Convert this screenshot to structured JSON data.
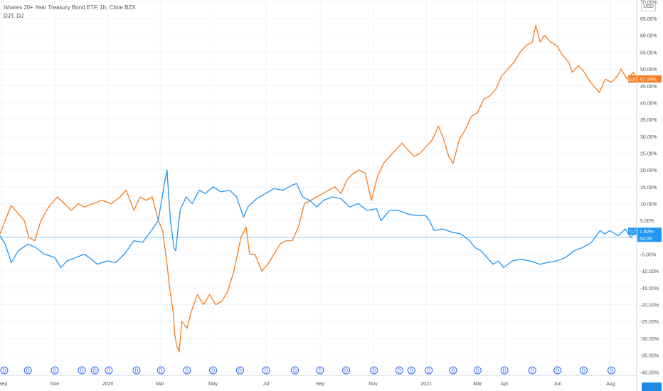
{
  "header": {
    "title": "Ishares 20+ Year Treasury Bond ETF, 1h, Cboe BZX",
    "compare": "DJT, DJ"
  },
  "currency": "USD",
  "colors": {
    "tlt": "#2196f3",
    "djt": "#f57c20",
    "grid": "#f0f3fa",
    "axis_text": "#50535e",
    "baseline": "#90caf9"
  },
  "event_marker_label": "D",
  "chart_data": {
    "type": "line",
    "ylabel": "",
    "xlabel": "",
    "ylim": [
      -41,
      70.5
    ],
    "y_ticks": [
      "70.00%",
      "65.00%",
      "60.00%",
      "55.00%",
      "50.00%",
      "45.00%",
      "40.00%",
      "35.00%",
      "30.00%",
      "25.00%",
      "20.00%",
      "15.00%",
      "10.00%",
      "5.00%",
      "-5.00%",
      "-10.00%",
      "-15.00%",
      "-20.00%",
      "-25.00%",
      "-30.00%",
      "-35.00%",
      "-40.00%"
    ],
    "y_tick_values": [
      70,
      65,
      60,
      55,
      50,
      45,
      40,
      35,
      30,
      25,
      20,
      15,
      10,
      5,
      -5,
      -10,
      -15,
      -20,
      -25,
      -30,
      -35,
      -40
    ],
    "x_ticks": [
      "Sep",
      "Nov",
      "2020",
      "Mar",
      "May",
      "Jul",
      "Sep",
      "Nov",
      "2021",
      "Mar",
      "Apr",
      "Jun",
      "Aug"
    ],
    "x_tick_dates": [
      "2019-09-01",
      "2019-11-01",
      "2020-01-01",
      "2020-03-01",
      "2020-05-01",
      "2020-07-01",
      "2020-09-01",
      "2020-11-01",
      "2021-01-01",
      "2021-03-01",
      "2021-04-01",
      "2021-06-01",
      "2021-08-01"
    ],
    "x_range": [
      "2019-08-30",
      "2021-08-31"
    ],
    "dividend_dates": [
      "2019-09-02",
      "2019-10-01",
      "2019-11-01",
      "2019-12-02",
      "2019-12-17",
      "2020-01-02",
      "2020-02-03",
      "2020-03-02",
      "2020-04-01",
      "2020-05-01",
      "2020-06-01",
      "2020-07-01",
      "2020-08-03",
      "2020-09-01",
      "2020-10-01",
      "2020-11-02",
      "2020-12-01",
      "2020-12-15",
      "2021-01-04",
      "2021-02-01",
      "2021-03-01",
      "2021-04-01",
      "2021-05-03",
      "2021-06-01",
      "2021-07-01",
      "2021-08-02"
    ],
    "grid": true,
    "series": [
      {
        "name": "TLT",
        "color": "#2196f3",
        "last_label": "1.82%",
        "countdown": "54:05",
        "points": [
          [
            "2019-08-30",
            0.5
          ],
          [
            "2019-09-05",
            -2
          ],
          [
            "2019-09-12",
            -7.5
          ],
          [
            "2019-09-20",
            -4
          ],
          [
            "2019-10-01",
            -2
          ],
          [
            "2019-10-10",
            -3
          ],
          [
            "2019-10-20",
            -5
          ],
          [
            "2019-11-01",
            -6
          ],
          [
            "2019-11-08",
            -9
          ],
          [
            "2019-11-15",
            -7
          ],
          [
            "2019-11-25",
            -6
          ],
          [
            "2019-12-05",
            -5
          ],
          [
            "2019-12-13",
            -6.5
          ],
          [
            "2019-12-20",
            -8
          ],
          [
            "2019-12-31",
            -7
          ],
          [
            "2020-01-10",
            -7.5
          ],
          [
            "2020-01-20",
            -5
          ],
          [
            "2020-01-31",
            -1
          ],
          [
            "2020-02-10",
            -1.5
          ],
          [
            "2020-02-20",
            2
          ],
          [
            "2020-02-28",
            5
          ],
          [
            "2020-03-06",
            16
          ],
          [
            "2020-03-09",
            20
          ],
          [
            "2020-03-11",
            12
          ],
          [
            "2020-03-13",
            5
          ],
          [
            "2020-03-17",
            -3
          ],
          [
            "2020-03-19",
            -4
          ],
          [
            "2020-03-24",
            8
          ],
          [
            "2020-03-31",
            12
          ],
          [
            "2020-04-07",
            10
          ],
          [
            "2020-04-15",
            14
          ],
          [
            "2020-04-22",
            13
          ],
          [
            "2020-05-01",
            15
          ],
          [
            "2020-05-10",
            13.5
          ],
          [
            "2020-05-20",
            14
          ],
          [
            "2020-05-28",
            12
          ],
          [
            "2020-06-05",
            6
          ],
          [
            "2020-06-10",
            9
          ],
          [
            "2020-06-20",
            11.5
          ],
          [
            "2020-06-30",
            13
          ],
          [
            "2020-07-10",
            14.5
          ],
          [
            "2020-07-20",
            14
          ],
          [
            "2020-07-31",
            15.5
          ],
          [
            "2020-08-05",
            16
          ],
          [
            "2020-08-12",
            12
          ],
          [
            "2020-08-20",
            11
          ],
          [
            "2020-08-28",
            9
          ],
          [
            "2020-09-05",
            11
          ],
          [
            "2020-09-15",
            12
          ],
          [
            "2020-09-25",
            11.5
          ],
          [
            "2020-10-05",
            9
          ],
          [
            "2020-10-15",
            10
          ],
          [
            "2020-10-25",
            8
          ],
          [
            "2020-11-05",
            8.5
          ],
          [
            "2020-11-10",
            5
          ],
          [
            "2020-11-20",
            8
          ],
          [
            "2020-11-30",
            8
          ],
          [
            "2020-12-10",
            7
          ],
          [
            "2020-12-20",
            6.5
          ],
          [
            "2020-12-31",
            6.5
          ],
          [
            "2021-01-05",
            5
          ],
          [
            "2021-01-10",
            2
          ],
          [
            "2021-01-20",
            2.5
          ],
          [
            "2021-01-31",
            1.5
          ],
          [
            "2021-02-10",
            1
          ],
          [
            "2021-02-20",
            -1
          ],
          [
            "2021-02-26",
            -3
          ],
          [
            "2021-03-05",
            -4
          ],
          [
            "2021-03-12",
            -6
          ],
          [
            "2021-03-19",
            -8
          ],
          [
            "2021-03-25",
            -7
          ],
          [
            "2021-03-31",
            -9
          ],
          [
            "2021-04-10",
            -7
          ],
          [
            "2021-04-20",
            -6.5
          ],
          [
            "2021-04-30",
            -7
          ],
          [
            "2021-05-12",
            -8
          ],
          [
            "2021-05-20",
            -7.5
          ],
          [
            "2021-05-31",
            -7
          ],
          [
            "2021-06-10",
            -6
          ],
          [
            "2021-06-20",
            -4
          ],
          [
            "2021-06-30",
            -3
          ],
          [
            "2021-07-10",
            -1.5
          ],
          [
            "2021-07-20",
            2
          ],
          [
            "2021-07-25",
            1
          ],
          [
            "2021-07-31",
            2
          ],
          [
            "2021-08-10",
            0.5
          ],
          [
            "2021-08-18",
            2.5
          ],
          [
            "2021-08-24",
            0
          ],
          [
            "2021-08-31",
            1.82
          ]
        ]
      },
      {
        "name": "DJT",
        "color": "#f57c20",
        "last_label": "47.04%",
        "points": [
          [
            "2019-08-30",
            1
          ],
          [
            "2019-09-05",
            5
          ],
          [
            "2019-09-12",
            9.5
          ],
          [
            "2019-09-20",
            7
          ],
          [
            "2019-09-27",
            5
          ],
          [
            "2019-10-02",
            0
          ],
          [
            "2019-10-09",
            -1
          ],
          [
            "2019-10-16",
            5
          ],
          [
            "2019-10-25",
            9
          ],
          [
            "2019-11-04",
            12
          ],
          [
            "2019-11-12",
            10
          ],
          [
            "2019-11-20",
            8
          ],
          [
            "2019-11-28",
            10
          ],
          [
            "2019-12-05",
            9
          ],
          [
            "2019-12-15",
            10
          ],
          [
            "2019-12-25",
            11
          ],
          [
            "2020-01-05",
            10
          ],
          [
            "2020-01-15",
            12
          ],
          [
            "2020-01-22",
            14
          ],
          [
            "2020-01-31",
            8
          ],
          [
            "2020-02-07",
            12
          ],
          [
            "2020-02-14",
            11
          ],
          [
            "2020-02-21",
            12
          ],
          [
            "2020-02-28",
            5
          ],
          [
            "2020-03-04",
            2
          ],
          [
            "2020-03-09",
            -8
          ],
          [
            "2020-03-12",
            -15
          ],
          [
            "2020-03-16",
            -22
          ],
          [
            "2020-03-18",
            -29
          ],
          [
            "2020-03-20",
            -32
          ],
          [
            "2020-03-23",
            -34
          ],
          [
            "2020-03-26",
            -25
          ],
          [
            "2020-04-01",
            -27
          ],
          [
            "2020-04-06",
            -22
          ],
          [
            "2020-04-13",
            -17
          ],
          [
            "2020-04-20",
            -20
          ],
          [
            "2020-04-27",
            -17
          ],
          [
            "2020-05-04",
            -20
          ],
          [
            "2020-05-11",
            -19
          ],
          [
            "2020-05-18",
            -16
          ],
          [
            "2020-05-25",
            -10
          ],
          [
            "2020-06-02",
            0
          ],
          [
            "2020-06-08",
            3
          ],
          [
            "2020-06-12",
            -5
          ],
          [
            "2020-06-18",
            -5
          ],
          [
            "2020-06-26",
            -10
          ],
          [
            "2020-07-03",
            -8
          ],
          [
            "2020-07-10",
            -5
          ],
          [
            "2020-07-17",
            -2
          ],
          [
            "2020-07-24",
            -1
          ],
          [
            "2020-07-31",
            -1
          ],
          [
            "2020-08-07",
            3
          ],
          [
            "2020-08-14",
            10
          ],
          [
            "2020-08-21",
            11
          ],
          [
            "2020-08-28",
            12
          ],
          [
            "2020-09-04",
            13
          ],
          [
            "2020-09-11",
            14
          ],
          [
            "2020-09-18",
            15
          ],
          [
            "2020-09-25",
            13
          ],
          [
            "2020-10-02",
            17
          ],
          [
            "2020-10-09",
            19
          ],
          [
            "2020-10-16",
            20
          ],
          [
            "2020-10-23",
            19
          ],
          [
            "2020-10-30",
            11
          ],
          [
            "2020-11-06",
            18
          ],
          [
            "2020-11-13",
            22
          ],
          [
            "2020-11-20",
            24
          ],
          [
            "2020-11-27",
            26
          ],
          [
            "2020-12-04",
            28
          ],
          [
            "2020-12-11",
            26
          ],
          [
            "2020-12-18",
            24
          ],
          [
            "2020-12-25",
            25
          ],
          [
            "2021-01-01",
            27
          ],
          [
            "2021-01-08",
            29
          ],
          [
            "2021-01-15",
            33
          ],
          [
            "2021-01-20",
            30
          ],
          [
            "2021-01-27",
            24
          ],
          [
            "2021-02-01",
            22
          ],
          [
            "2021-02-08",
            29
          ],
          [
            "2021-02-15",
            32
          ],
          [
            "2021-02-22",
            36
          ],
          [
            "2021-03-01",
            37
          ],
          [
            "2021-03-08",
            41
          ],
          [
            "2021-03-15",
            42
          ],
          [
            "2021-03-22",
            44
          ],
          [
            "2021-03-29",
            48
          ],
          [
            "2021-04-05",
            50
          ],
          [
            "2021-04-12",
            52
          ],
          [
            "2021-04-19",
            55
          ],
          [
            "2021-04-26",
            57
          ],
          [
            "2021-05-03",
            58
          ],
          [
            "2021-05-07",
            63
          ],
          [
            "2021-05-12",
            58
          ],
          [
            "2021-05-17",
            60
          ],
          [
            "2021-05-24",
            58
          ],
          [
            "2021-05-31",
            57
          ],
          [
            "2021-06-07",
            54
          ],
          [
            "2021-06-14",
            52
          ],
          [
            "2021-06-18",
            49
          ],
          [
            "2021-06-25",
            51
          ],
          [
            "2021-07-02",
            49
          ],
          [
            "2021-07-09",
            46
          ],
          [
            "2021-07-16",
            44
          ],
          [
            "2021-07-19",
            43
          ],
          [
            "2021-07-26",
            47
          ],
          [
            "2021-08-02",
            46
          ],
          [
            "2021-08-09",
            48
          ],
          [
            "2021-08-13",
            50
          ],
          [
            "2021-08-20",
            47
          ],
          [
            "2021-08-27",
            49
          ],
          [
            "2021-08-31",
            47.04
          ]
        ]
      }
    ]
  }
}
